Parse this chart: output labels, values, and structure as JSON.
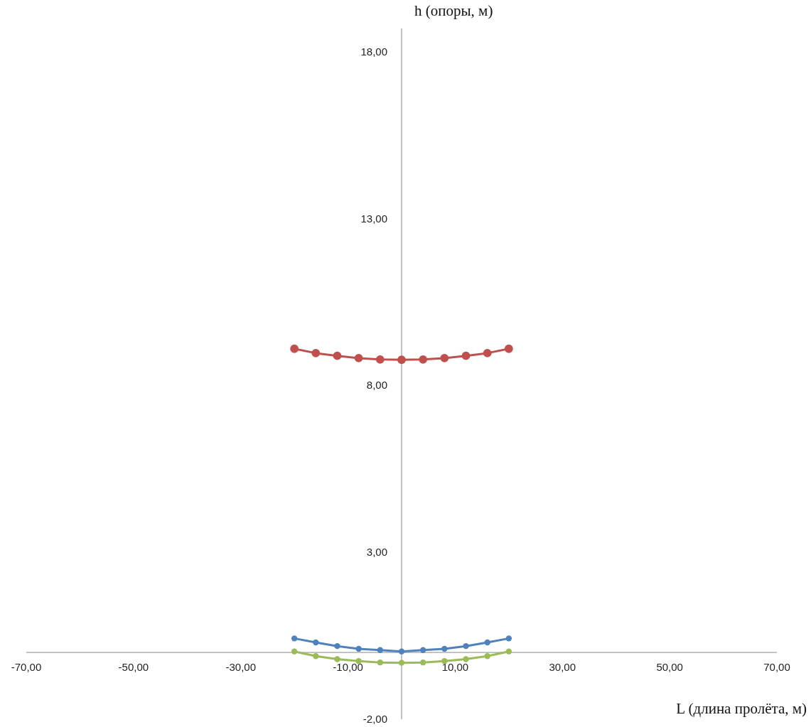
{
  "chart_data": {
    "type": "line",
    "xlabel": "L (длина пролёта, м)",
    "ylabel": "h (опоры, м)",
    "x": [
      -20,
      -16,
      -12,
      -8,
      -4,
      0,
      4,
      8,
      12,
      16,
      20
    ],
    "series": [
      {
        "color": "#c0504d",
        "values": [
          9.1,
          8.97,
          8.89,
          8.82,
          8.78,
          8.77,
          8.78,
          8.82,
          8.89,
          8.97,
          9.1
        ]
      },
      {
        "color": "#4f81bd",
        "values": [
          0.42,
          0.3,
          0.19,
          0.11,
          0.07,
          0.03,
          0.07,
          0.11,
          0.19,
          0.3,
          0.42
        ]
      },
      {
        "color": "#9bbb59",
        "values": [
          0.03,
          -0.11,
          -0.2,
          -0.26,
          -0.3,
          -0.31,
          -0.3,
          -0.26,
          -0.2,
          -0.11,
          0.03
        ]
      }
    ],
    "xlim": [
      -70,
      70
    ],
    "ylim": [
      -2,
      18.7
    ],
    "xticks": [
      {
        "value": -70,
        "label": "-70,00"
      },
      {
        "value": -50,
        "label": "-50,00"
      },
      {
        "value": -30,
        "label": "-30,00"
      },
      {
        "value": -10,
        "label": "-10,00"
      },
      {
        "value": 10,
        "label": "10,00"
      },
      {
        "value": 30,
        "label": "30,00"
      },
      {
        "value": 50,
        "label": "50,00"
      },
      {
        "value": 70,
        "label": "70,00"
      }
    ],
    "yticks": [
      {
        "value": -2,
        "label": "-2,00"
      },
      {
        "value": 3,
        "label": "3,00"
      },
      {
        "value": 8,
        "label": "8,00"
      },
      {
        "value": 13,
        "label": "13,00"
      },
      {
        "value": 18,
        "label": "18,00"
      }
    ],
    "marker": "circle",
    "line_style": "solid"
  }
}
